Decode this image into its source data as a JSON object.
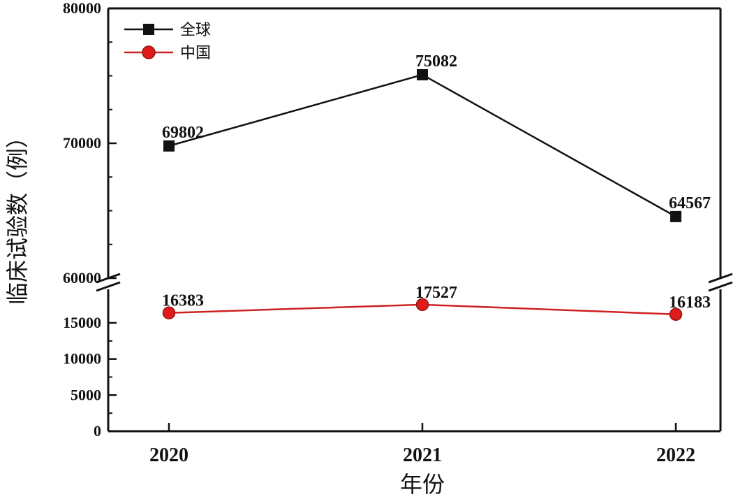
{
  "chart_data": {
    "type": "line",
    "title": "",
    "xlabel": "年份",
    "ylabel": "临床试验数（例）",
    "x": [
      "2020",
      "2021",
      "2022"
    ],
    "y_axis_break": true,
    "upper_ylim": [
      60000,
      80000
    ],
    "upper_yticks": [
      "60000",
      "70000",
      "80000"
    ],
    "lower_ylim": [
      0,
      20000
    ],
    "lower_yticks": [
      "0",
      "5000",
      "10000",
      "15000"
    ],
    "legend_position": "top-left",
    "grid": false,
    "series": [
      {
        "name": "全球",
        "values": [
          69802,
          75082,
          64567
        ],
        "labels": [
          "69802",
          "75082",
          "64567"
        ],
        "color": "#111111",
        "marker": "square"
      },
      {
        "name": "中国",
        "values": [
          16383,
          17527,
          16183
        ],
        "labels": [
          "16383",
          "17527",
          "16183"
        ],
        "color": "#cc2222",
        "marker": "circle"
      }
    ]
  }
}
